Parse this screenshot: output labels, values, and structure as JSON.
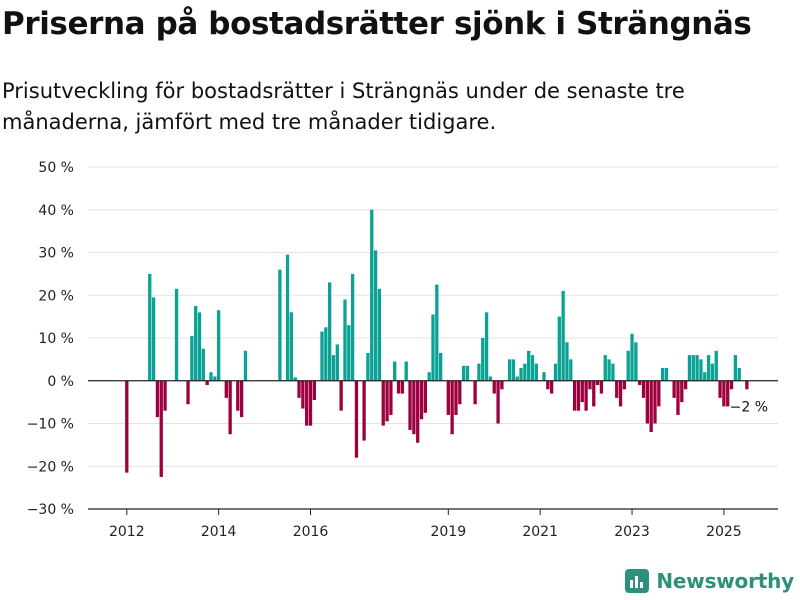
{
  "header": {
    "title": "Priserna på bostadsrätter sjönk i Strängnäs",
    "subtitle": "Prisutveckling för bostadsrätter i Strängnäs under de senaste tre månaderna, jämfört med tre månader tidigare."
  },
  "brand": {
    "name": "Newsworthy",
    "color": "#2e8f7c"
  },
  "chart_data": {
    "type": "bar",
    "ylim": [
      -30,
      50
    ],
    "y_ticks": [
      50,
      40,
      30,
      20,
      10,
      0,
      -10,
      -20,
      -30
    ],
    "y_tick_labels": [
      "50 %",
      "40 %",
      "30 %",
      "20 %",
      "10 %",
      "0 %",
      "−10 %",
      "−20 %",
      "−30 %"
    ],
    "x_ticks": [
      {
        "label": "2012",
        "month": "2012-01"
      },
      {
        "label": "2014",
        "month": "2014-01"
      },
      {
        "label": "2016",
        "month": "2016-01"
      },
      {
        "label": "2019",
        "month": "2019-01"
      },
      {
        "label": "2021",
        "month": "2021-01"
      },
      {
        "label": "2023",
        "month": "2023-01"
      },
      {
        "label": "2025",
        "month": "2025-01"
      }
    ],
    "grid": true,
    "colors": {
      "positive": "#0aa294",
      "negative": "#9c003f"
    },
    "annotation": {
      "text": "−2 %",
      "month": "2025-07"
    },
    "series": [
      {
        "points": [
          {
            "month": "2012-01",
            "value": -21.5
          },
          {
            "month": "2012-07",
            "value": 25
          },
          {
            "month": "2012-08",
            "value": 19.5
          },
          {
            "month": "2012-09",
            "value": -8.5
          },
          {
            "month": "2012-10",
            "value": -22.5
          },
          {
            "month": "2012-11",
            "value": -7
          },
          {
            "month": "2013-02",
            "value": 21.5
          },
          {
            "month": "2013-05",
            "value": -5.5
          },
          {
            "month": "2013-06",
            "value": 10.5
          },
          {
            "month": "2013-07",
            "value": 17.5
          },
          {
            "month": "2013-08",
            "value": 16
          },
          {
            "month": "2013-09",
            "value": 7.5
          },
          {
            "month": "2013-10",
            "value": -1
          },
          {
            "month": "2013-11",
            "value": 2
          },
          {
            "month": "2013-12",
            "value": 1
          },
          {
            "month": "2014-01",
            "value": 16.5
          },
          {
            "month": "2014-03",
            "value": -4
          },
          {
            "month": "2014-04",
            "value": -12.5
          },
          {
            "month": "2014-06",
            "value": -7
          },
          {
            "month": "2014-07",
            "value": -8.5
          },
          {
            "month": "2014-08",
            "value": 7
          },
          {
            "month": "2015-05",
            "value": 26
          },
          {
            "month": "2015-07",
            "value": 29.5
          },
          {
            "month": "2015-08",
            "value": 16
          },
          {
            "month": "2015-09",
            "value": 0.8
          },
          {
            "month": "2015-10",
            "value": -4
          },
          {
            "month": "2015-11",
            "value": -6.5
          },
          {
            "month": "2015-12",
            "value": -10.5
          },
          {
            "month": "2016-01",
            "value": -10.5
          },
          {
            "month": "2016-02",
            "value": -4.5
          },
          {
            "month": "2016-04",
            "value": 11.5
          },
          {
            "month": "2016-05",
            "value": 12.5
          },
          {
            "month": "2016-06",
            "value": 23
          },
          {
            "month": "2016-07",
            "value": 6
          },
          {
            "month": "2016-08",
            "value": 8.5
          },
          {
            "month": "2016-09",
            "value": -7
          },
          {
            "month": "2016-10",
            "value": 19
          },
          {
            "month": "2016-11",
            "value": 13
          },
          {
            "month": "2016-12",
            "value": 25
          },
          {
            "month": "2017-01",
            "value": -18
          },
          {
            "month": "2017-03",
            "value": -14
          },
          {
            "month": "2017-04",
            "value": 6.5
          },
          {
            "month": "2017-05",
            "value": 40
          },
          {
            "month": "2017-06",
            "value": 30.5
          },
          {
            "month": "2017-07",
            "value": 21.5
          },
          {
            "month": "2017-08",
            "value": -10.5
          },
          {
            "month": "2017-09",
            "value": -9.5
          },
          {
            "month": "2017-10",
            "value": -8
          },
          {
            "month": "2017-11",
            "value": 4.5
          },
          {
            "month": "2017-12",
            "value": -3
          },
          {
            "month": "2018-01",
            "value": -3
          },
          {
            "month": "2018-02",
            "value": 4.5
          },
          {
            "month": "2018-03",
            "value": -11.5
          },
          {
            "month": "2018-04",
            "value": -12.5
          },
          {
            "month": "2018-05",
            "value": -14.5
          },
          {
            "month": "2018-06",
            "value": -9
          },
          {
            "month": "2018-07",
            "value": -7.5
          },
          {
            "month": "2018-08",
            "value": 2
          },
          {
            "month": "2018-09",
            "value": 15.5
          },
          {
            "month": "2018-10",
            "value": 22.5
          },
          {
            "month": "2018-11",
            "value": 6.5
          },
          {
            "month": "2019-01",
            "value": -8
          },
          {
            "month": "2019-02",
            "value": -12.5
          },
          {
            "month": "2019-03",
            "value": -8
          },
          {
            "month": "2019-04",
            "value": -5.5
          },
          {
            "month": "2019-05",
            "value": 3.5
          },
          {
            "month": "2019-06",
            "value": 3.5
          },
          {
            "month": "2019-08",
            "value": -5.5
          },
          {
            "month": "2019-09",
            "value": 4
          },
          {
            "month": "2019-10",
            "value": 10
          },
          {
            "month": "2019-11",
            "value": 16
          },
          {
            "month": "2019-12",
            "value": 1
          },
          {
            "month": "2020-01",
            "value": -3
          },
          {
            "month": "2020-02",
            "value": -10
          },
          {
            "month": "2020-03",
            "value": -2
          },
          {
            "month": "2020-05",
            "value": 5
          },
          {
            "month": "2020-06",
            "value": 5
          },
          {
            "month": "2020-07",
            "value": 1
          },
          {
            "month": "2020-08",
            "value": 3
          },
          {
            "month": "2020-09",
            "value": 4
          },
          {
            "month": "2020-10",
            "value": 7
          },
          {
            "month": "2020-11",
            "value": 6
          },
          {
            "month": "2020-12",
            "value": 4
          },
          {
            "month": "2021-02",
            "value": 2
          },
          {
            "month": "2021-03",
            "value": -2
          },
          {
            "month": "2021-04",
            "value": -3
          },
          {
            "month": "2021-05",
            "value": 4
          },
          {
            "month": "2021-06",
            "value": 15
          },
          {
            "month": "2021-07",
            "value": 21
          },
          {
            "month": "2021-08",
            "value": 9
          },
          {
            "month": "2021-09",
            "value": 5
          },
          {
            "month": "2021-10",
            "value": -7
          },
          {
            "month": "2021-11",
            "value": -7
          },
          {
            "month": "2021-12",
            "value": -5
          },
          {
            "month": "2022-01",
            "value": -7
          },
          {
            "month": "2022-02",
            "value": -2
          },
          {
            "month": "2022-03",
            "value": -6
          },
          {
            "month": "2022-04",
            "value": -1
          },
          {
            "month": "2022-05",
            "value": -3
          },
          {
            "month": "2022-06",
            "value": 6
          },
          {
            "month": "2022-07",
            "value": 5
          },
          {
            "month": "2022-08",
            "value": 4
          },
          {
            "month": "2022-09",
            "value": -4
          },
          {
            "month": "2022-10",
            "value": -6
          },
          {
            "month": "2022-11",
            "value": -2
          },
          {
            "month": "2022-12",
            "value": 7
          },
          {
            "month": "2023-01",
            "value": 11
          },
          {
            "month": "2023-02",
            "value": 9
          },
          {
            "month": "2023-03",
            "value": -1
          },
          {
            "month": "2023-04",
            "value": -4
          },
          {
            "month": "2023-05",
            "value": -10
          },
          {
            "month": "2023-06",
            "value": -12
          },
          {
            "month": "2023-07",
            "value": -10
          },
          {
            "month": "2023-08",
            "value": -6
          },
          {
            "month": "2023-09",
            "value": 3
          },
          {
            "month": "2023-10",
            "value": 3
          },
          {
            "month": "2023-12",
            "value": -4
          },
          {
            "month": "2024-01",
            "value": -8
          },
          {
            "month": "2024-02",
            "value": -5
          },
          {
            "month": "2024-03",
            "value": -2
          },
          {
            "month": "2024-04",
            "value": 6
          },
          {
            "month": "2024-05",
            "value": 6
          },
          {
            "month": "2024-06",
            "value": 6
          },
          {
            "month": "2024-07",
            "value": 5
          },
          {
            "month": "2024-08",
            "value": 2
          },
          {
            "month": "2024-09",
            "value": 6
          },
          {
            "month": "2024-10",
            "value": 4
          },
          {
            "month": "2024-11",
            "value": 7
          },
          {
            "month": "2024-12",
            "value": -4
          },
          {
            "month": "2025-01",
            "value": -6
          },
          {
            "month": "2025-02",
            "value": -6
          },
          {
            "month": "2025-03",
            "value": -2
          },
          {
            "month": "2025-04",
            "value": 6
          },
          {
            "month": "2025-05",
            "value": 3
          },
          {
            "month": "2025-07",
            "value": -2
          }
        ]
      }
    ]
  }
}
